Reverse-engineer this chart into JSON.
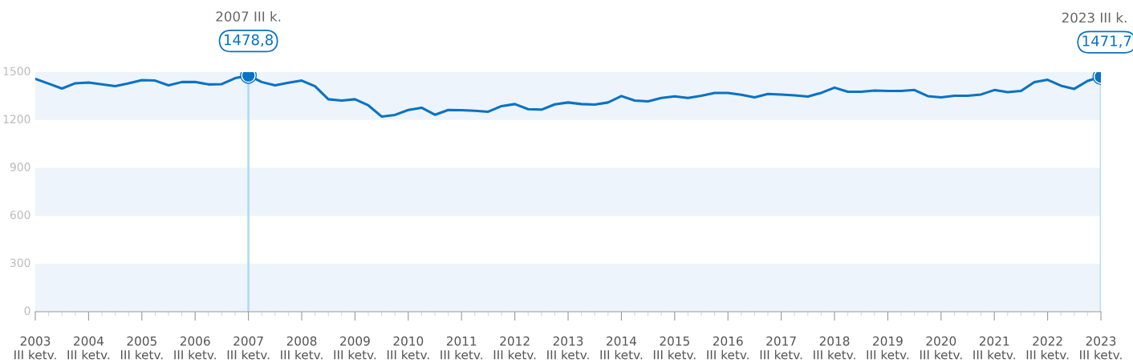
{
  "chart_data": {
    "type": "line",
    "categories": [
      "2003\nIII ketv.",
      null,
      null,
      null,
      "2004\nIII ketv.",
      null,
      null,
      null,
      "2005\nIII ketv.",
      null,
      null,
      null,
      "2006\nIII ketv.",
      null,
      null,
      null,
      "2007\nIII ketv.",
      null,
      null,
      null,
      "2008\nIII ketv.",
      null,
      null,
      null,
      "2009\nIII ketv.",
      null,
      null,
      null,
      "2010\nIII ketv.",
      null,
      null,
      null,
      "2011\nIII ketv.",
      null,
      null,
      null,
      "2012\nIII ketv.",
      null,
      null,
      null,
      "2013\nIII ketv.",
      null,
      null,
      null,
      "2014\nIII ketv.",
      null,
      null,
      null,
      "2015\nIII ketv.",
      null,
      null,
      null,
      "2016\nIII ketv.",
      null,
      null,
      null,
      "2017\nIII ketv.",
      null,
      null,
      null,
      "2018\nIII ketv.",
      null,
      null,
      null,
      "2019\nIII ketv.",
      null,
      null,
      null,
      "2020\nIII ketv.",
      null,
      null,
      null,
      "2021\nIII ketv.",
      null,
      null,
      null,
      "2022\nIII ketv.",
      null,
      null,
      null,
      "2023\nIII ketv."
    ],
    "series": [
      {
        "color": "#0a72c4",
        "values": [
          1458,
          1428,
          1397,
          1430,
          1435,
          1423,
          1412,
          1430,
          1450,
          1447,
          1417,
          1438,
          1438,
          1423,
          1425,
          1462,
          1478.8,
          1438,
          1417,
          1433,
          1447,
          1412,
          1330,
          1322,
          1330,
          1292,
          1222,
          1232,
          1263,
          1277,
          1233,
          1263,
          1262,
          1258,
          1252,
          1287,
          1300,
          1268,
          1265,
          1298,
          1310,
          1300,
          1297,
          1310,
          1350,
          1322,
          1317,
          1338,
          1348,
          1338,
          1352,
          1370,
          1370,
          1358,
          1342,
          1363,
          1360,
          1355,
          1347,
          1370,
          1403,
          1377,
          1377,
          1385,
          1382,
          1382,
          1388,
          1350,
          1342,
          1352,
          1352,
          1360,
          1388,
          1375,
          1382,
          1437,
          1452,
          1415,
          1395,
          1445,
          1471.7
        ],
        "value_labels": [
          null,
          null,
          null,
          null,
          null,
          null,
          null,
          null,
          null,
          null,
          null,
          null,
          null,
          null,
          null,
          null,
          "1478,8",
          null,
          null,
          null,
          null,
          null,
          null,
          null,
          null,
          null,
          null,
          null,
          null,
          null,
          null,
          null,
          null,
          null,
          null,
          null,
          null,
          null,
          null,
          null,
          null,
          null,
          null,
          null,
          null,
          null,
          null,
          null,
          null,
          null,
          null,
          null,
          null,
          null,
          null,
          null,
          null,
          null,
          null,
          null,
          null,
          null,
          null,
          null,
          null,
          null,
          null,
          null,
          null,
          null,
          null,
          null,
          null,
          null,
          null,
          null,
          null,
          null,
          null,
          null,
          "1471,7"
        ]
      }
    ],
    "ylim": [
      0,
      1500
    ],
    "yticks": [
      0,
      300,
      600,
      900,
      1200,
      1500
    ],
    "bands": [
      {
        "axis": "y",
        "from": 0,
        "to": 300,
        "color": "#edf4fb"
      },
      {
        "axis": "y",
        "from": 600,
        "to": 900,
        "color": "#edf4fb"
      },
      {
        "axis": "y",
        "from": 1200,
        "to": 1500,
        "color": "#edf4fb"
      }
    ],
    "ref_lines": [
      {
        "axis": "x",
        "value": "2007\nIII ketv.",
        "color": "#b3dcf7"
      },
      {
        "axis": "x",
        "value": "2023\nIII ketv.",
        "color": "#b3dcf7"
      }
    ],
    "annotations": [
      "2007 III k.",
      "2023 III k."
    ],
    "grid": false,
    "legend": false
  }
}
